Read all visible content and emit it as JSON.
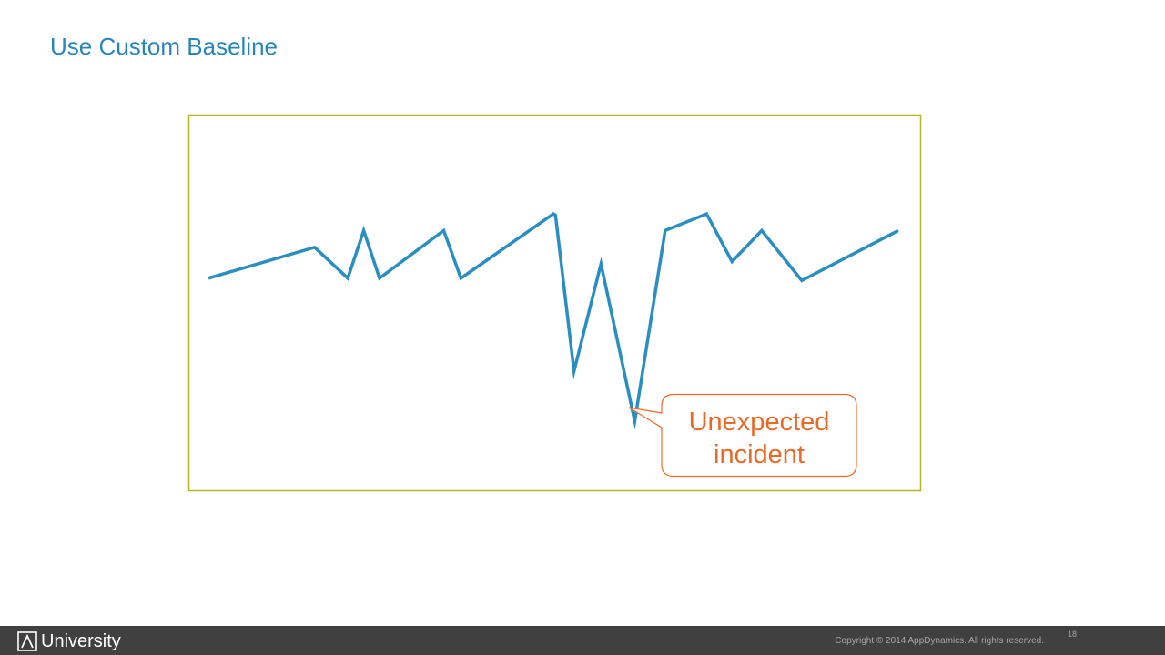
{
  "slide": {
    "title": "Use Custom Baseline",
    "page_number": "18"
  },
  "footer": {
    "brand": "University",
    "copyright": "Copyright © 2014 AppDynamics. All rights reserved."
  },
  "callout": {
    "line1": "Unexpected",
    "line2": "incident"
  },
  "colors": {
    "title": "#2a86b7",
    "line": "#2a8fc0",
    "frame": "#b5b627",
    "callout": "#e86a28",
    "footer_bg": "#404040"
  },
  "chart_data": {
    "type": "line",
    "title": "",
    "xlabel": "",
    "ylabel": "",
    "grid": false,
    "axes_visible": false,
    "series": [
      {
        "values": [
          [
            0,
            0.39
          ],
          [
            0.154,
            0.52
          ],
          [
            0.202,
            0.39
          ],
          [
            0.225,
            0.59
          ],
          [
            0.248,
            0.39
          ],
          [
            0.341,
            0.59
          ],
          [
            0.366,
            0.39
          ],
          [
            0.5,
            0.66
          ],
          [
            0.503,
            0.655
          ],
          [
            0.53,
            0.0
          ],
          [
            0.569,
            0.45
          ],
          [
            0.618,
            -0.21
          ],
          [
            0.662,
            0.59
          ],
          [
            0.722,
            0.66
          ],
          [
            0.759,
            0.46
          ],
          [
            0.802,
            0.59
          ],
          [
            0.86,
            0.38
          ],
          [
            1.0,
            0.59
          ]
        ]
      }
    ],
    "annotations": [
      {
        "text": "Unexpected incident",
        "at_point_index": 11
      }
    ]
  }
}
